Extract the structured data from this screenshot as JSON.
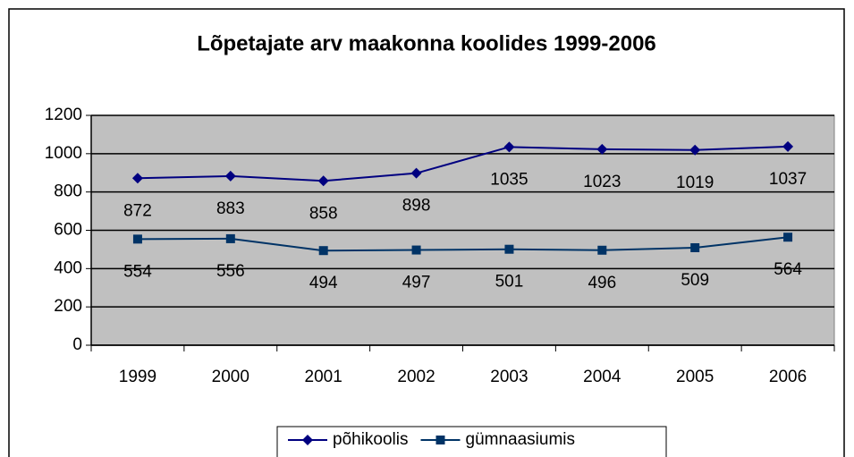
{
  "chart_data": {
    "type": "line",
    "title": "Lõpetajate arv maakonna koolides 1999-2006",
    "categories": [
      "1999",
      "2000",
      "2001",
      "2002",
      "2003",
      "2004",
      "2005",
      "2006"
    ],
    "series": [
      {
        "name": "põhikoolis",
        "color": "#000080",
        "marker": "diamond",
        "values": [
          872,
          883,
          858,
          898,
          1035,
          1023,
          1019,
          1037
        ]
      },
      {
        "name": "gümnaasiumis",
        "color": "#003366",
        "marker": "square",
        "values": [
          554,
          556,
          494,
          497,
          501,
          496,
          509,
          564
        ]
      }
    ],
    "ylim": [
      0,
      1200
    ],
    "yticks": [
      0,
      200,
      400,
      600,
      800,
      1000,
      1200
    ],
    "grid": true,
    "legend": "bottom"
  }
}
